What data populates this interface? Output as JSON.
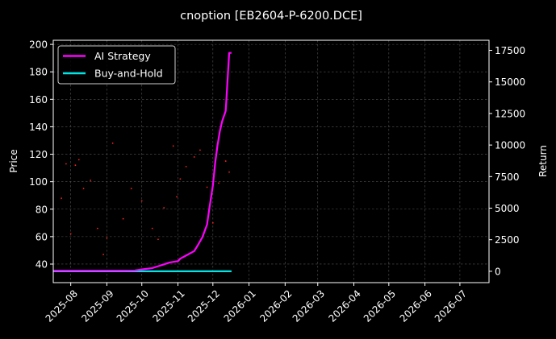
{
  "chart_data": {
    "type": "line",
    "title": "cnoption [EB2604-P-6200.DCE]",
    "xlabel": "",
    "ylabel_left": "Price",
    "ylabel_right": "Return",
    "x_ticks": [
      "2025-08",
      "2025-09",
      "2025-10",
      "2025-11",
      "2025-12",
      "2026-01",
      "2026-02",
      "2026-03",
      "2026-04",
      "2026-05",
      "2026-06",
      "2026-07"
    ],
    "y_left_ticks": [
      40,
      60,
      80,
      100,
      120,
      140,
      160,
      180,
      200
    ],
    "y_right_ticks": [
      0,
      2500,
      5000,
      7500,
      10000,
      12500,
      15000,
      17500
    ],
    "x_range": [
      "2025-07-17",
      "2026-07-26"
    ],
    "y_left_range": [
      26.5,
      203
    ],
    "y_right_range": [
      -900,
      18300
    ],
    "grid": true,
    "legend_position": "upper-left",
    "colors": {
      "background": "#000000",
      "ai_strategy": "#ff00ff",
      "buy_and_hold": "#00e5e5",
      "price_points": "#ff2020",
      "grid": "#555555"
    },
    "series": [
      {
        "name": "AI Strategy",
        "axis": "right",
        "x": [
          "2025-07-17",
          "2025-08-15",
          "2025-09-15",
          "2025-09-25",
          "2025-10-01",
          "2025-10-10",
          "2025-10-15",
          "2025-10-20",
          "2025-10-25",
          "2025-11-01",
          "2025-11-03",
          "2025-11-06",
          "2025-11-10",
          "2025-11-15",
          "2025-11-18",
          "2025-11-22",
          "2025-11-26",
          "2025-11-28",
          "2025-12-01",
          "2025-12-03",
          "2025-12-05",
          "2025-12-07",
          "2025-12-09",
          "2025-12-12",
          "2025-12-15",
          "2025-12-17"
        ],
        "values": [
          50,
          50,
          50,
          60,
          150,
          250,
          400,
          550,
          700,
          800,
          1000,
          1150,
          1350,
          1600,
          2050,
          2700,
          3700,
          5000,
          6800,
          8600,
          10000,
          11100,
          11900,
          12700,
          17300,
          17300
        ]
      },
      {
        "name": "Buy-and-Hold",
        "axis": "right",
        "x": [
          "2025-07-17",
          "2025-12-17"
        ],
        "values": [
          0,
          0
        ]
      },
      {
        "name": "Price",
        "axis": "left",
        "style": "points",
        "x": [
          "2025-07-24",
          "2025-07-28",
          "2025-08-01",
          "2025-08-05",
          "2025-08-08",
          "2025-08-12",
          "2025-08-18",
          "2025-08-24",
          "2025-08-29",
          "2025-09-01",
          "2025-09-06",
          "2025-09-15",
          "2025-09-22",
          "2025-10-01",
          "2025-10-10",
          "2025-10-15",
          "2025-10-20",
          "2025-10-28",
          "2025-10-31",
          "2025-11-03",
          "2025-11-08",
          "2025-11-15",
          "2025-11-20",
          "2025-11-26",
          "2025-12-01",
          "2025-12-06",
          "2025-12-12",
          "2025-12-15"
        ],
        "values": [
          88,
          113,
          62,
          112,
          116,
          95,
          101,
          66,
          47,
          59,
          128,
          73,
          95,
          86,
          66,
          58,
          81,
          126,
          89,
          102,
          111,
          118,
          123,
          96,
          70,
          99,
          115,
          107
        ]
      }
    ]
  }
}
